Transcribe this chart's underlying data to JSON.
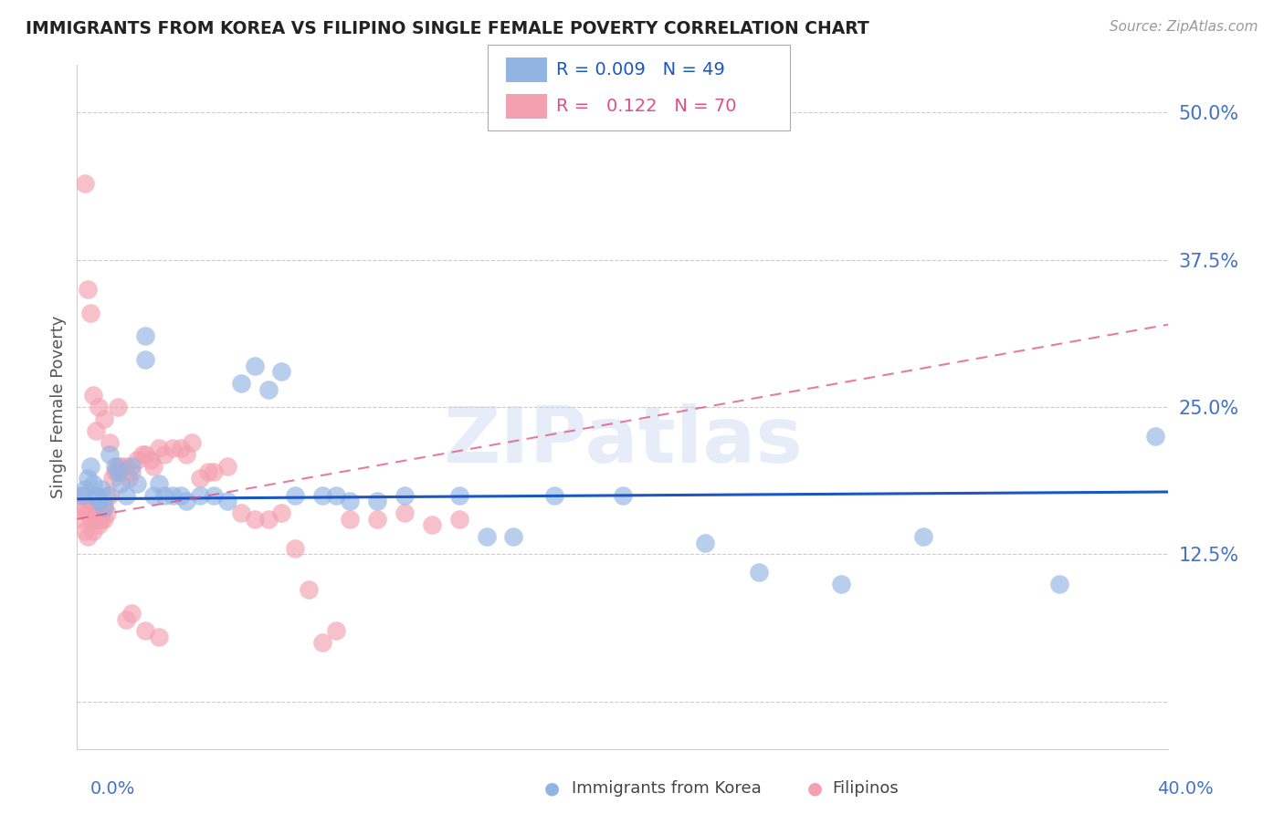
{
  "title": "IMMIGRANTS FROM KOREA VS FILIPINO SINGLE FEMALE POVERTY CORRELATION CHART",
  "source": "Source: ZipAtlas.com",
  "ylabel": "Single Female Poverty",
  "yticks": [
    0.0,
    0.125,
    0.25,
    0.375,
    0.5
  ],
  "ytick_labels": [
    "",
    "12.5%",
    "25.0%",
    "37.5%",
    "50.0%"
  ],
  "xlim": [
    0.0,
    0.4
  ],
  "ylim": [
    -0.04,
    0.54
  ],
  "legend_korea_r": "0.009",
  "legend_korea_n": "49",
  "legend_filipino_r": "0.122",
  "legend_filipino_n": "70",
  "legend_label_korea": "Immigrants from Korea",
  "legend_label_filipino": "Filipinos",
  "color_korea": "#92b4e3",
  "color_filipino": "#f4a0b0",
  "color_korea_line": "#1a56c4",
  "color_filipino_line": "#e05080",
  "color_title": "#222222",
  "color_source": "#999999",
  "color_axis_labels": "#4472c4",
  "color_grid": "#cccccc",
  "watermark": "ZIPatlas",
  "korea_x": [
    0.002,
    0.003,
    0.004,
    0.005,
    0.006,
    0.007,
    0.008,
    0.009,
    0.01,
    0.011,
    0.012,
    0.014,
    0.015,
    0.016,
    0.018,
    0.02,
    0.022,
    0.025,
    0.025,
    0.028,
    0.03,
    0.032,
    0.035,
    0.038,
    0.04,
    0.045,
    0.05,
    0.055,
    0.06,
    0.065,
    0.07,
    0.075,
    0.08,
    0.09,
    0.095,
    0.1,
    0.11,
    0.12,
    0.14,
    0.15,
    0.16,
    0.175,
    0.2,
    0.23,
    0.25,
    0.28,
    0.31,
    0.36,
    0.395
  ],
  "korea_y": [
    0.175,
    0.18,
    0.19,
    0.2,
    0.185,
    0.175,
    0.17,
    0.18,
    0.165,
    0.175,
    0.21,
    0.2,
    0.195,
    0.185,
    0.175,
    0.2,
    0.185,
    0.29,
    0.31,
    0.175,
    0.185,
    0.175,
    0.175,
    0.175,
    0.17,
    0.175,
    0.175,
    0.17,
    0.27,
    0.285,
    0.265,
    0.28,
    0.175,
    0.175,
    0.175,
    0.17,
    0.17,
    0.175,
    0.175,
    0.14,
    0.14,
    0.175,
    0.175,
    0.135,
    0.11,
    0.1,
    0.14,
    0.1,
    0.225
  ],
  "filipino_x": [
    0.001,
    0.002,
    0.002,
    0.003,
    0.003,
    0.004,
    0.004,
    0.005,
    0.005,
    0.006,
    0.006,
    0.007,
    0.007,
    0.008,
    0.008,
    0.009,
    0.009,
    0.01,
    0.01,
    0.011,
    0.012,
    0.013,
    0.014,
    0.015,
    0.016,
    0.017,
    0.018,
    0.019,
    0.02,
    0.022,
    0.024,
    0.025,
    0.027,
    0.028,
    0.03,
    0.032,
    0.035,
    0.038,
    0.04,
    0.042,
    0.045,
    0.048,
    0.05,
    0.055,
    0.06,
    0.065,
    0.07,
    0.075,
    0.08,
    0.085,
    0.09,
    0.095,
    0.1,
    0.11,
    0.12,
    0.13,
    0.14,
    0.003,
    0.004,
    0.005,
    0.006,
    0.007,
    0.008,
    0.01,
    0.012,
    0.015,
    0.018,
    0.02,
    0.025,
    0.03
  ],
  "filipino_y": [
    0.165,
    0.175,
    0.155,
    0.165,
    0.145,
    0.16,
    0.14,
    0.165,
    0.155,
    0.165,
    0.145,
    0.155,
    0.165,
    0.15,
    0.155,
    0.16,
    0.155,
    0.165,
    0.155,
    0.16,
    0.175,
    0.19,
    0.195,
    0.2,
    0.2,
    0.195,
    0.2,
    0.19,
    0.195,
    0.205,
    0.21,
    0.21,
    0.205,
    0.2,
    0.215,
    0.21,
    0.215,
    0.215,
    0.21,
    0.22,
    0.19,
    0.195,
    0.195,
    0.2,
    0.16,
    0.155,
    0.155,
    0.16,
    0.13,
    0.095,
    0.05,
    0.06,
    0.155,
    0.155,
    0.16,
    0.15,
    0.155,
    0.44,
    0.35,
    0.33,
    0.26,
    0.23,
    0.25,
    0.24,
    0.22,
    0.25,
    0.07,
    0.075,
    0.06,
    0.055
  ]
}
